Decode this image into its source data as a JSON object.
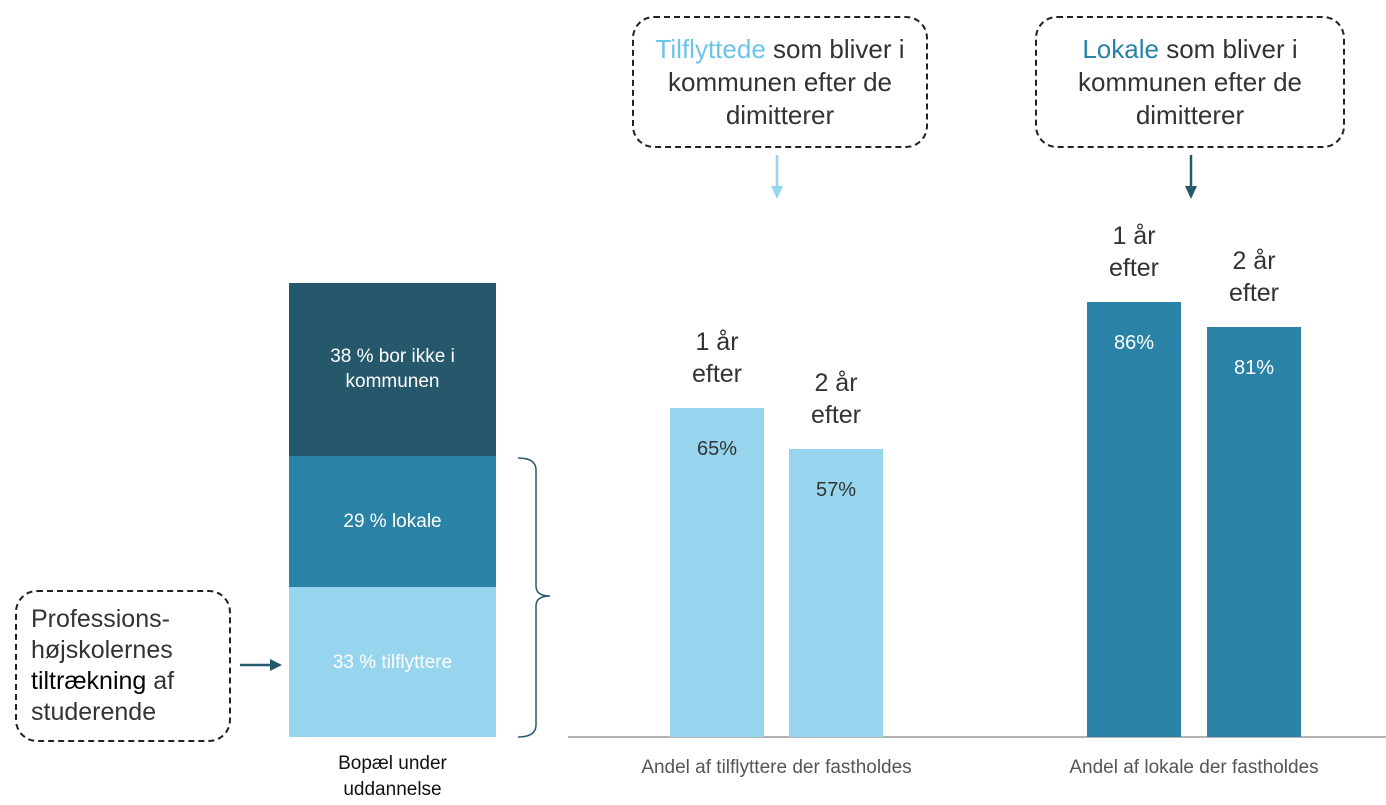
{
  "chart_data": [
    {
      "type": "stacked_bar",
      "category": "Bopæl under uddannelse",
      "series": [
        {
          "color": "#97d5ef",
          "values": [
            33
          ],
          "value_labels": [
            "33 % tilflyttere"
          ]
        },
        {
          "color": "#2a83a6",
          "values": [
            29
          ],
          "value_labels": [
            "29 % lokale"
          ]
        },
        {
          "color": "#26586b",
          "values": [
            38
          ],
          "value_labels": [
            "38 % bor ikke i kommunen"
          ]
        }
      ],
      "callout": {
        "before": "Professions-højskolernes",
        "highlight": "tiltrækning",
        "after": "af studerende"
      }
    },
    {
      "type": "bar",
      "groups": [
        {
          "label": "Andel af tilflyttere der fastholdes",
          "categories": [
            "1 år efter",
            "2 år efter"
          ],
          "values": [
            65,
            57
          ],
          "value_labels": [
            "65%",
            "57%"
          ],
          "color": "#97d5ef",
          "callout": {
            "highlight": "Tilflyttede",
            "text": "som bliver i kommunen efter de dimitterer",
            "color": "#6cc4e8"
          }
        },
        {
          "label": "Andel af lokale der fastholdes",
          "categories": [
            "1 år efter",
            "2 år efter"
          ],
          "values": [
            86,
            81
          ],
          "value_labels": [
            "86%",
            "81%"
          ],
          "color": "#2a83a6",
          "callout": {
            "highlight": "Lokale",
            "text": "som bliver i kommunen efter de dimitterer",
            "color": "#2a83a6"
          }
        }
      ]
    }
  ]
}
